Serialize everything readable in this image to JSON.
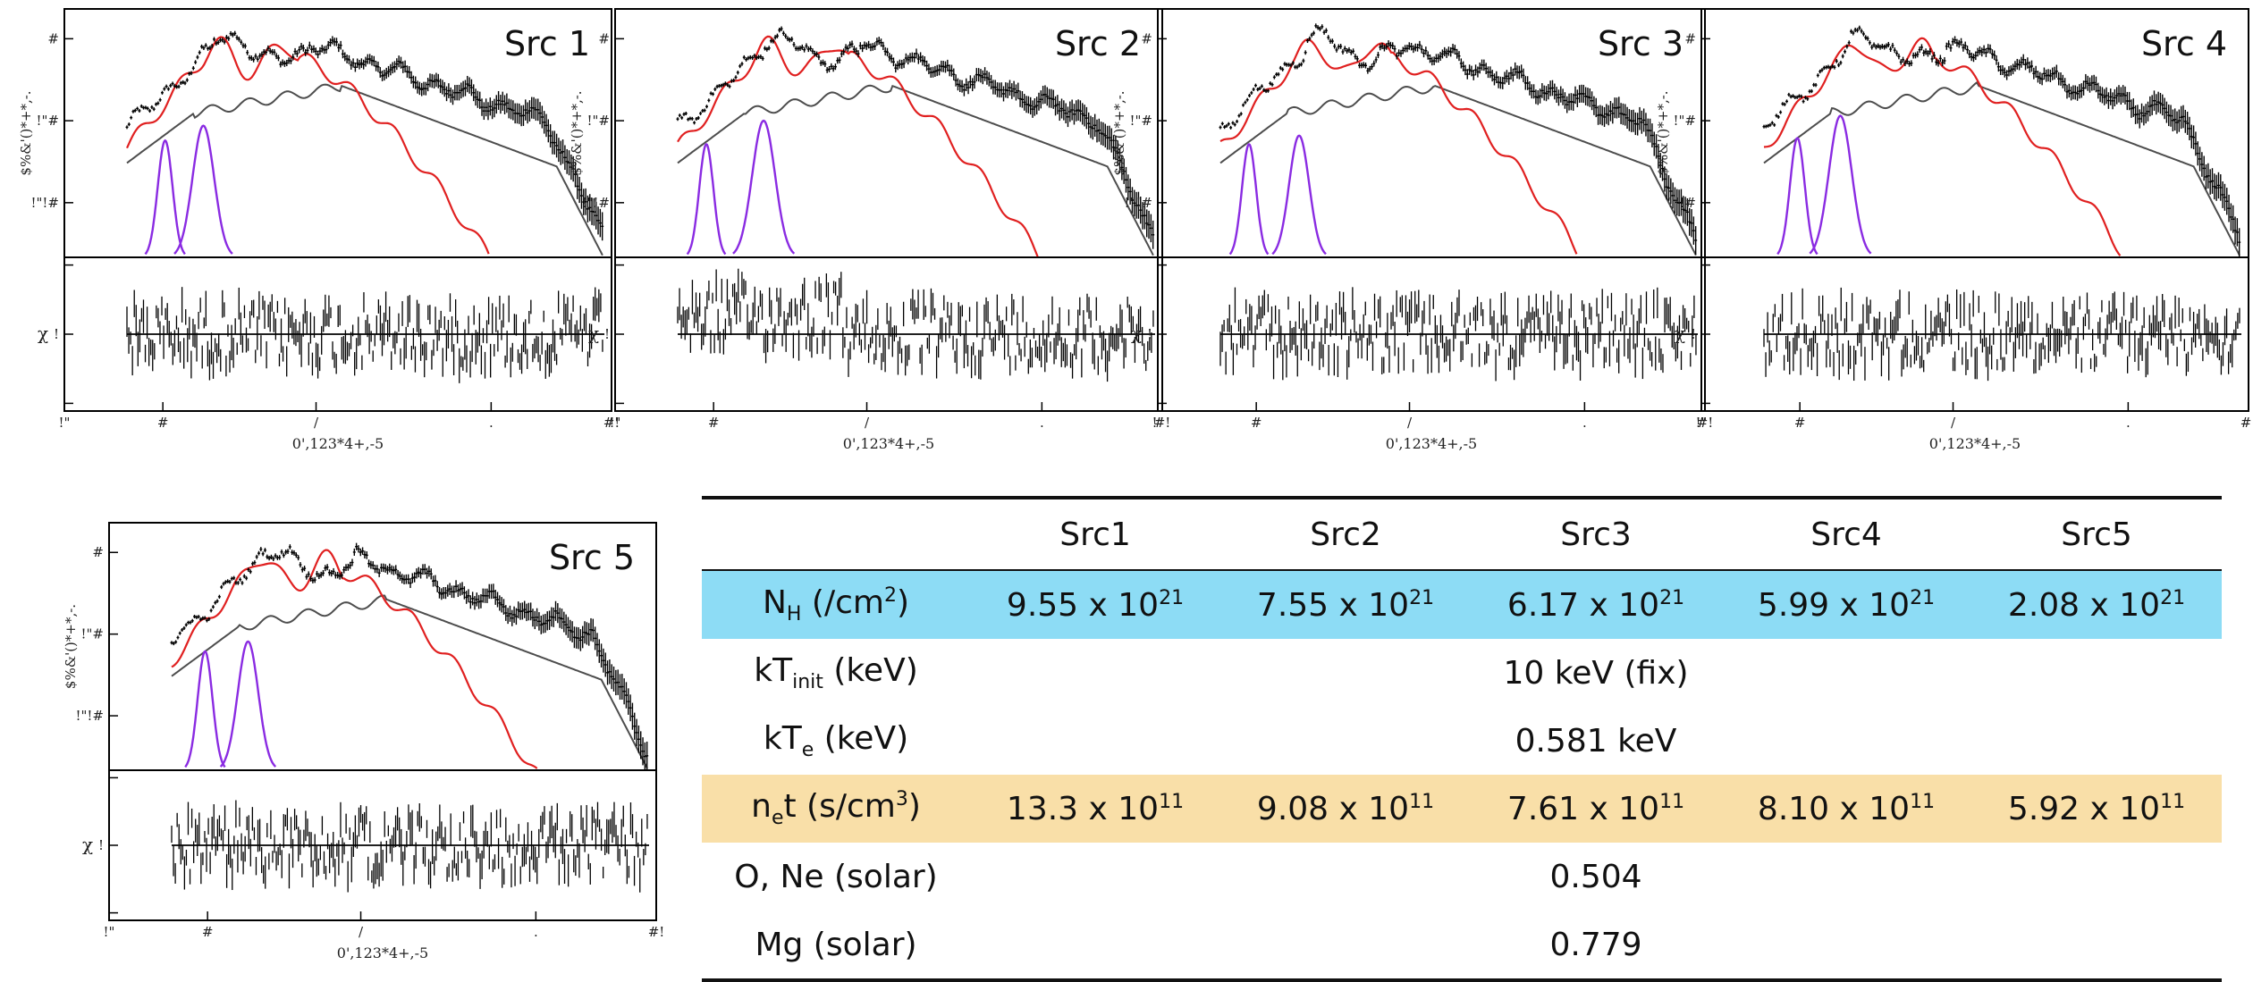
{
  "colors": {
    "data": "#000000",
    "total_model": "#4d4d4d",
    "red_component": "#e02020",
    "purple_component": "#8a2be2",
    "nh_row": "#8ddcf5",
    "net_row": "#f9dfa8"
  },
  "panel_text": {
    "y_axis_label": "$%&'()*+*,-.",
    "y_ticks": [
      "#",
      "!\"#",
      "!\"!#"
    ],
    "x_axis_label": "0',123*4+,-5",
    "x_ticks": [
      "!\"",
      "#",
      "/",
      ".",
      "#!"
    ],
    "resid_label": "χ",
    "resid_ticks": [
      "!",
      ""
    ]
  },
  "chart_data": [
    {
      "type": "line",
      "title": "Src 1",
      "xscale": "log",
      "yscale": "log",
      "purple_peaks": [
        [
          0.58,
          0.05,
          0.026
        ],
        [
          0.66,
          0.11,
          0.038
        ]
      ],
      "panel_index": 0
    },
    {
      "type": "line",
      "title": "Src 2",
      "xscale": "log",
      "yscale": "log",
      "purple_peaks": [
        [
          0.56,
          0.035,
          0.025
        ],
        [
          0.68,
          0.13,
          0.04
        ]
      ],
      "panel_index": 1
    },
    {
      "type": "line",
      "title": "Src 3",
      "xscale": "log",
      "yscale": "log",
      "purple_peaks": [
        [
          0.56,
          0.035,
          0.025
        ],
        [
          0.665,
          0.07,
          0.035
        ]
      ],
      "panel_index": 2
    },
    {
      "type": "line",
      "title": "Src 4",
      "xscale": "log",
      "yscale": "log",
      "purple_peaks": [
        [
          0.57,
          0.06,
          0.026
        ],
        [
          0.66,
          0.15,
          0.04
        ]
      ],
      "panel_index": 3
    },
    {
      "type": "line",
      "title": "Src 5",
      "xscale": "log",
      "yscale": "log",
      "purple_peaks": [
        [
          0.57,
          0.06,
          0.026
        ],
        [
          0.66,
          0.1,
          0.036
        ]
      ],
      "panel_index": 4
    }
  ],
  "table": {
    "headers": [
      "",
      "Src1",
      "Src2",
      "Src3",
      "Src4",
      "Src5"
    ],
    "nh": {
      "label_main": "N",
      "label_sub": "H",
      "label_rest": " (/cm",
      "label_sup": "2",
      "label_end": ")",
      "values": [
        {
          "mant": "9.55 x 10",
          "exp": "21"
        },
        {
          "mant": "7.55 x 10",
          "exp": "21"
        },
        {
          "mant": "6.17 x 10",
          "exp": "21"
        },
        {
          "mant": "5.99 x 10",
          "exp": "21"
        },
        {
          "mant": "2.08 x 10",
          "exp": "21"
        }
      ]
    },
    "kt_init": {
      "label_main": "kT",
      "label_sub": "init",
      "label_rest": " (keV)",
      "value": "10 keV (fix)"
    },
    "kt_e": {
      "label_main": "kT",
      "label_sub": "e",
      "label_rest": " (keV)",
      "value": "0.581 keV"
    },
    "net": {
      "label_main": "n",
      "label_sub": "e",
      "label_rest": "t (s/cm",
      "label_sup": "3",
      "label_end": ")",
      "values": [
        {
          "mant": "13.3 x 10",
          "exp": "11"
        },
        {
          "mant": "9.08 x 10",
          "exp": "11"
        },
        {
          "mant": "7.61 x 10",
          "exp": "11"
        },
        {
          "mant": "8.10 x 10",
          "exp": "11"
        },
        {
          "mant": "5.92 x 10",
          "exp": "11"
        }
      ]
    },
    "one": {
      "label": "O, Ne (solar)",
      "value": "0.504"
    },
    "mg": {
      "label": "Mg (solar)",
      "value": "0.779"
    }
  }
}
